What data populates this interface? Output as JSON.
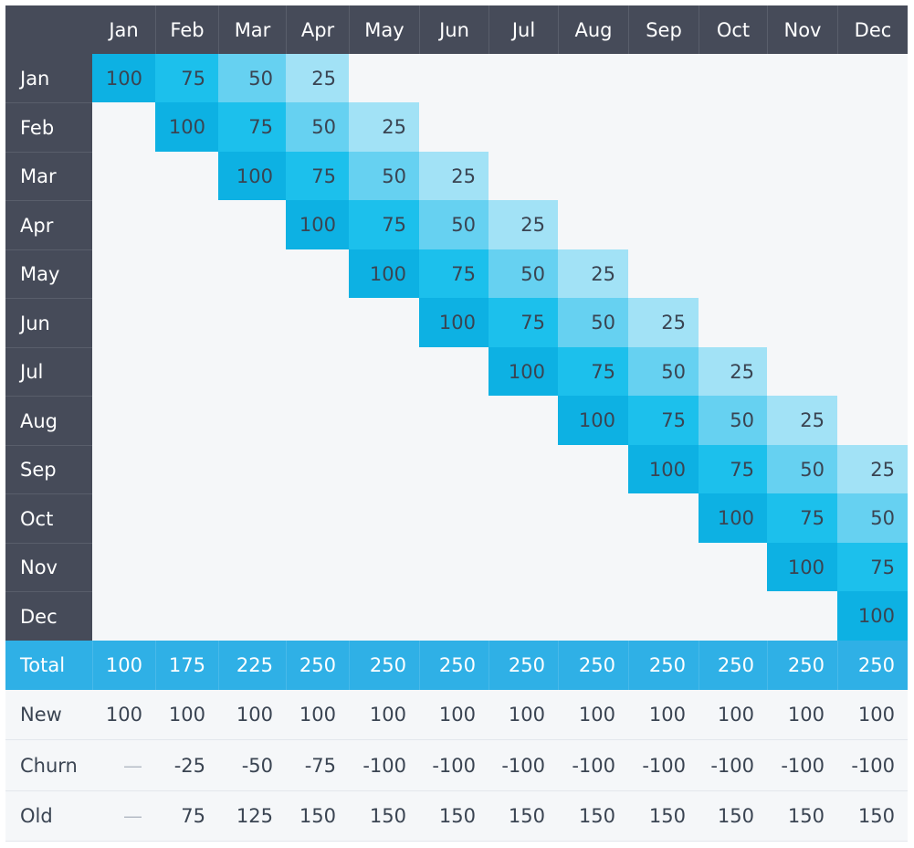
{
  "chart_data": {
    "type": "table",
    "columns": [
      "Jan",
      "Feb",
      "Mar",
      "Apr",
      "May",
      "Jun",
      "Jul",
      "Aug",
      "Sep",
      "Oct",
      "Nov",
      "Dec"
    ],
    "rows": [
      {
        "label": "Jan",
        "values": [
          100,
          75,
          50,
          25,
          null,
          null,
          null,
          null,
          null,
          null,
          null,
          null
        ]
      },
      {
        "label": "Feb",
        "values": [
          null,
          100,
          75,
          50,
          25,
          null,
          null,
          null,
          null,
          null,
          null,
          null
        ]
      },
      {
        "label": "Mar",
        "values": [
          null,
          null,
          100,
          75,
          50,
          25,
          null,
          null,
          null,
          null,
          null,
          null
        ]
      },
      {
        "label": "Apr",
        "values": [
          null,
          null,
          null,
          100,
          75,
          50,
          25,
          null,
          null,
          null,
          null,
          null
        ]
      },
      {
        "label": "May",
        "values": [
          null,
          null,
          null,
          null,
          100,
          75,
          50,
          25,
          null,
          null,
          null,
          null
        ]
      },
      {
        "label": "Jun",
        "values": [
          null,
          null,
          null,
          null,
          null,
          100,
          75,
          50,
          25,
          null,
          null,
          null
        ]
      },
      {
        "label": "Jul",
        "values": [
          null,
          null,
          null,
          null,
          null,
          null,
          100,
          75,
          50,
          25,
          null,
          null
        ]
      },
      {
        "label": "Aug",
        "values": [
          null,
          null,
          null,
          null,
          null,
          null,
          null,
          100,
          75,
          50,
          25,
          null
        ]
      },
      {
        "label": "Sep",
        "values": [
          null,
          null,
          null,
          null,
          null,
          null,
          null,
          null,
          100,
          75,
          50,
          25
        ]
      },
      {
        "label": "Oct",
        "values": [
          null,
          null,
          null,
          null,
          null,
          null,
          null,
          null,
          null,
          100,
          75,
          50
        ]
      },
      {
        "label": "Nov",
        "values": [
          null,
          null,
          null,
          null,
          null,
          null,
          null,
          null,
          null,
          null,
          100,
          75
        ]
      },
      {
        "label": "Dec",
        "values": [
          null,
          null,
          null,
          null,
          null,
          null,
          null,
          null,
          null,
          null,
          null,
          100
        ]
      }
    ],
    "summary_rows": [
      {
        "label": "Total",
        "values": [
          "100",
          "175",
          "225",
          "250",
          "250",
          "250",
          "250",
          "250",
          "250",
          "250",
          "250",
          "250"
        ]
      },
      {
        "label": "New",
        "values": [
          "100",
          "100",
          "100",
          "100",
          "100",
          "100",
          "100",
          "100",
          "100",
          "100",
          "100",
          "100"
        ]
      },
      {
        "label": "Churn",
        "values": [
          "—",
          "-25",
          "-50",
          "-75",
          "-100",
          "-100",
          "-100",
          "-100",
          "-100",
          "-100",
          "-100",
          "-100"
        ]
      },
      {
        "label": "Old",
        "values": [
          "—",
          "75",
          "125",
          "150",
          "150",
          "150",
          "150",
          "150",
          "150",
          "150",
          "150",
          "150"
        ]
      }
    ],
    "colors": {
      "header_bg": "#464b59",
      "empty_bg": "#f5f7f9",
      "v100": "#0db1e3",
      "v75": "#1cc0ec",
      "v50": "#66d1f1",
      "v25": "#a2e2f6",
      "total_bg": "#2fb0e6",
      "summary_bg": "#f5f7f9"
    }
  }
}
